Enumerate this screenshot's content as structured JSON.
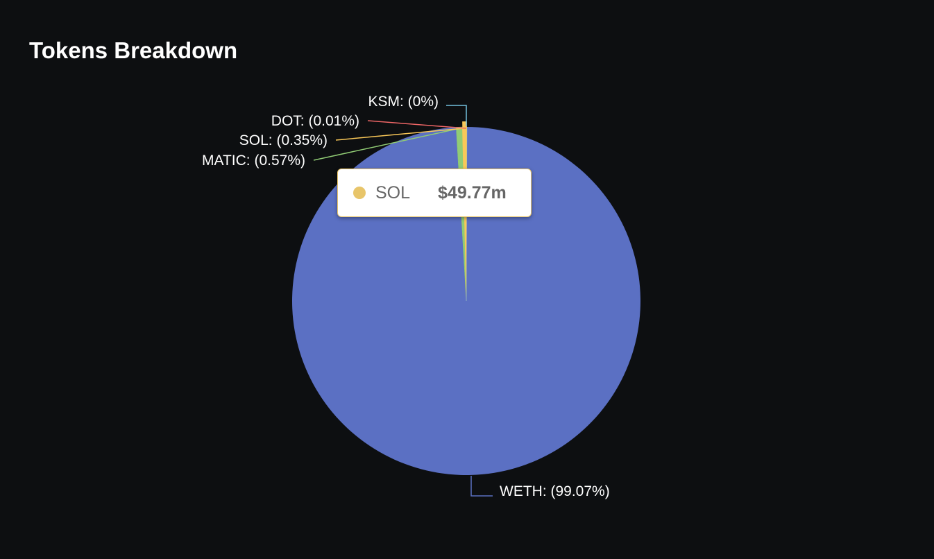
{
  "chart_data": {
    "type": "pie",
    "title": "Tokens Breakdown",
    "slices": [
      {
        "name": "WETH",
        "value": 99.07,
        "label": "WETH: (99.07%)",
        "color": "#5b70c3"
      },
      {
        "name": "MATIC",
        "value": 0.57,
        "label": "MATIC: (0.57%)",
        "color": "#91cc75"
      },
      {
        "name": "SOL",
        "value": 0.35,
        "label": "SOL: (0.35%)",
        "color": "#fac858"
      },
      {
        "name": "DOT",
        "value": 0.01,
        "label": "DOT: (0.01%)",
        "color": "#ee6666"
      },
      {
        "name": "KSM",
        "value": 0,
        "label": "KSM: (0%)",
        "color": "#73c0de"
      }
    ],
    "tooltip": {
      "name": "SOL",
      "value": "$49.77m",
      "color": "#e8c56a"
    }
  }
}
